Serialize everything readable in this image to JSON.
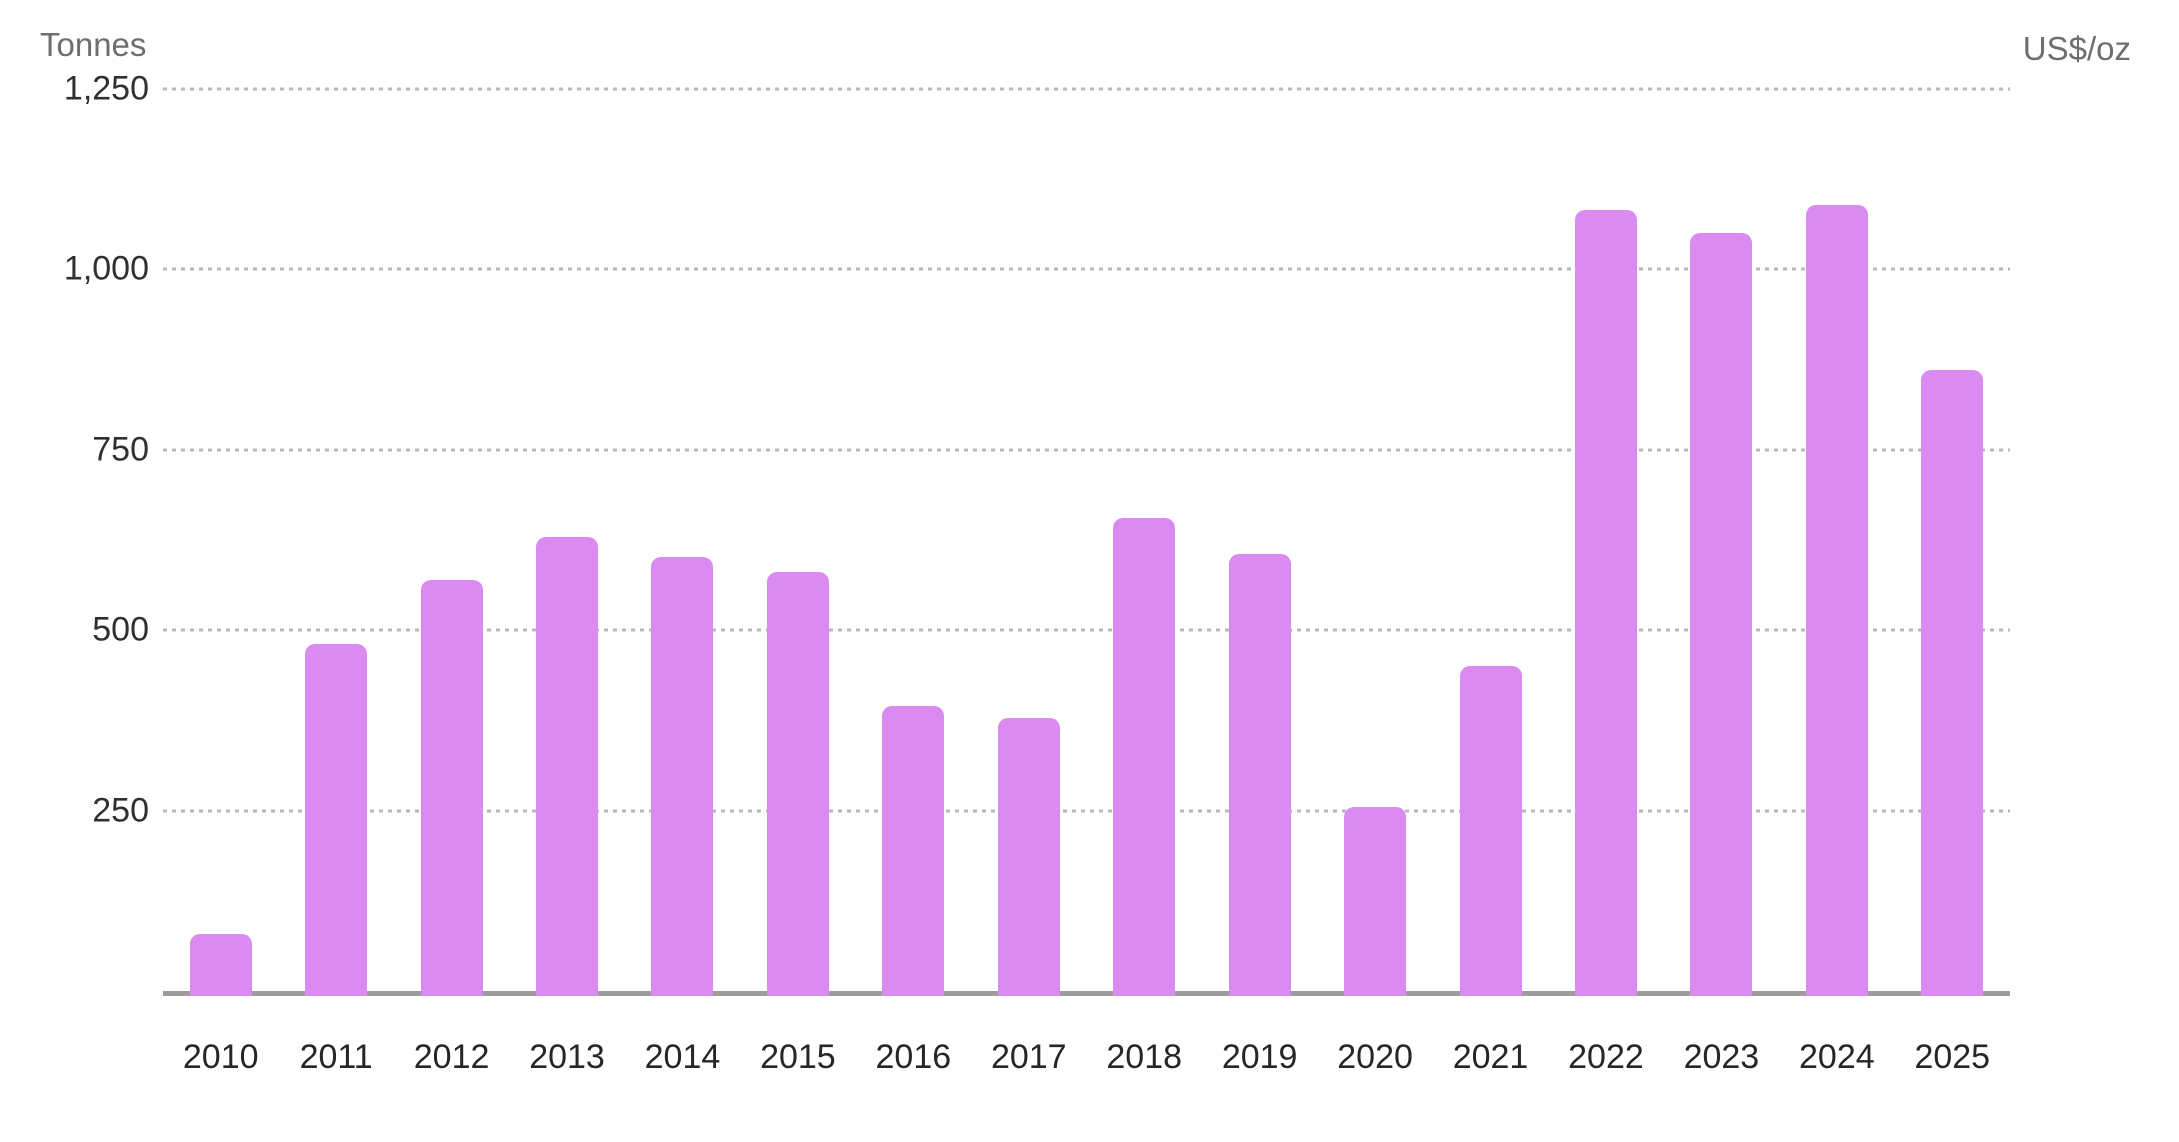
{
  "chart_data": {
    "type": "bar",
    "title": "",
    "ylabel": "Tonnes",
    "y2label": "US$/oz",
    "categories": [
      "2010",
      "2011",
      "2012",
      "2013",
      "2014",
      "2015",
      "2016",
      "2017",
      "2018",
      "2019",
      "2020",
      "2021",
      "2022",
      "2023",
      "2024",
      "2025"
    ],
    "values": [
      79,
      481,
      569,
      629,
      601,
      580,
      395,
      379,
      656,
      605,
      255,
      450,
      1082,
      1051,
      1089,
      860
    ],
    "ylim": [
      0,
      1250
    ],
    "yticks": [
      250,
      500,
      750,
      1000,
      1250
    ],
    "ytick_labels": [
      "250",
      "500",
      "750",
      "1,000",
      "1,250"
    ],
    "y2tick_labels": [],
    "grid": "horizontal-dotted",
    "legend_position": "none",
    "bar_color": "#D98BF2",
    "grid_color": "#B8B8B8",
    "axis_line_color": "#9C9C9C"
  }
}
